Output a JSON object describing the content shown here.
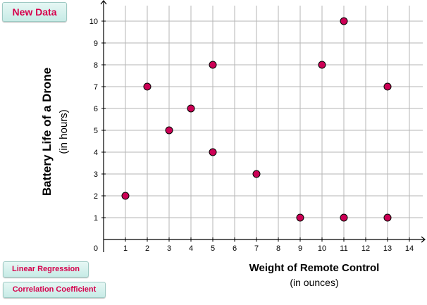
{
  "buttons": {
    "new_data": "New Data",
    "linear_regression": "Linear Regression",
    "correlation_coefficient": "Correlation Coefficient"
  },
  "chart_data": {
    "type": "scatter",
    "xlabel": "Weight of Remote Control",
    "xlabel_sub": "(in ounces)",
    "ylabel": "Battery Life of a Drone",
    "ylabel_sub": "(in hours)",
    "xlim": [
      0,
      14
    ],
    "ylim": [
      0,
      10
    ],
    "x_ticks": [
      1,
      2,
      3,
      4,
      5,
      6,
      7,
      8,
      9,
      10,
      11,
      12,
      13,
      14
    ],
    "y_ticks": [
      1,
      2,
      3,
      4,
      5,
      6,
      7,
      8,
      9,
      10
    ],
    "origin_label": "0",
    "grid": true,
    "point_color": "#cc0055",
    "points": [
      {
        "x": 1,
        "y": 2
      },
      {
        "x": 2,
        "y": 7
      },
      {
        "x": 3,
        "y": 5
      },
      {
        "x": 4,
        "y": 6
      },
      {
        "x": 5,
        "y": 8
      },
      {
        "x": 5,
        "y": 4
      },
      {
        "x": 7,
        "y": 3
      },
      {
        "x": 9,
        "y": 1
      },
      {
        "x": 10,
        "y": 8
      },
      {
        "x": 11,
        "y": 10
      },
      {
        "x": 11,
        "y": 1
      },
      {
        "x": 13,
        "y": 7
      },
      {
        "x": 13,
        "y": 1
      }
    ]
  }
}
